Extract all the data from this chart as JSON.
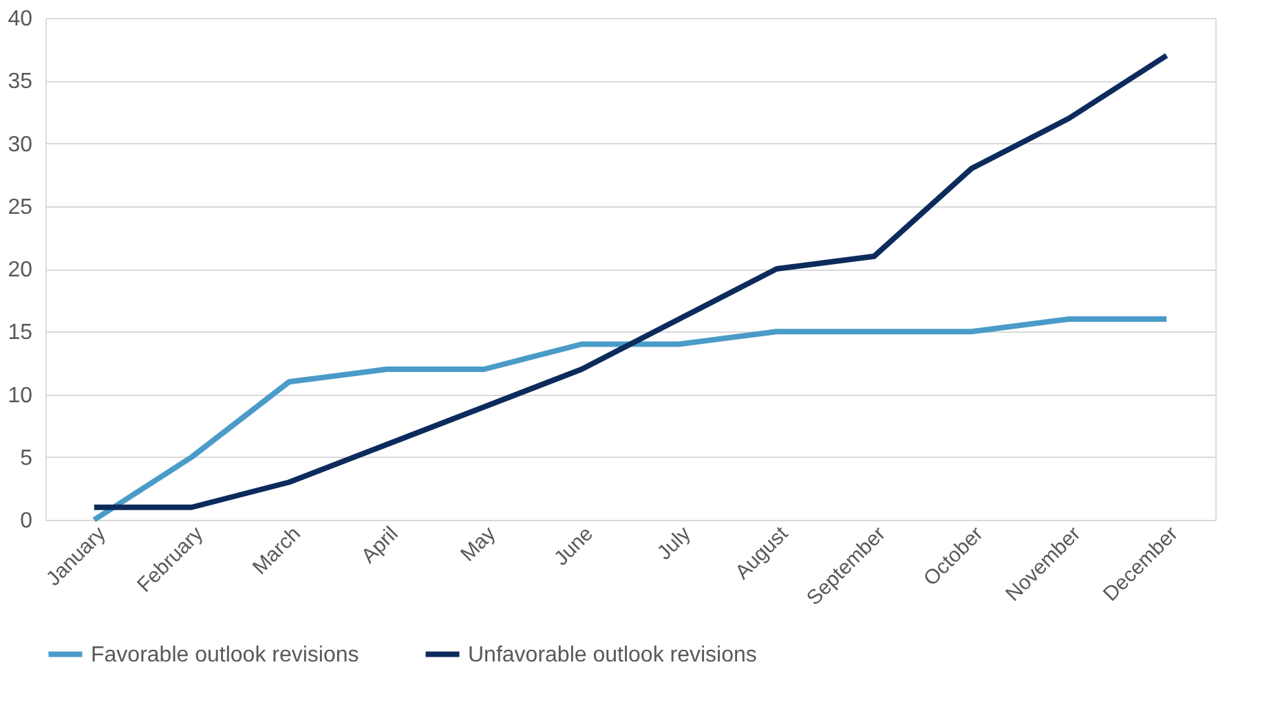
{
  "chart_data": {
    "type": "line",
    "categories": [
      "January",
      "February",
      "March",
      "April",
      "May",
      "June",
      "July",
      "August",
      "September",
      "October",
      "November",
      "December"
    ],
    "series": [
      {
        "name": "Favorable outlook revisions",
        "color": "#4a9bc8",
        "values": [
          0,
          5,
          11,
          12,
          12,
          14,
          14,
          15,
          15,
          15,
          16,
          16
        ]
      },
      {
        "name": "Unfavorable outlook revisions",
        "color": "#0c2b5c",
        "values": [
          1,
          1,
          3,
          6,
          9,
          12,
          16,
          20,
          21,
          28,
          32,
          37
        ]
      }
    ],
    "ylim": [
      0,
      40
    ],
    "yticks": [
      0,
      5,
      10,
      15,
      20,
      25,
      30,
      35,
      40
    ],
    "grid": "y",
    "legend": "bottom",
    "marker": "none",
    "line_style": "solid"
  }
}
